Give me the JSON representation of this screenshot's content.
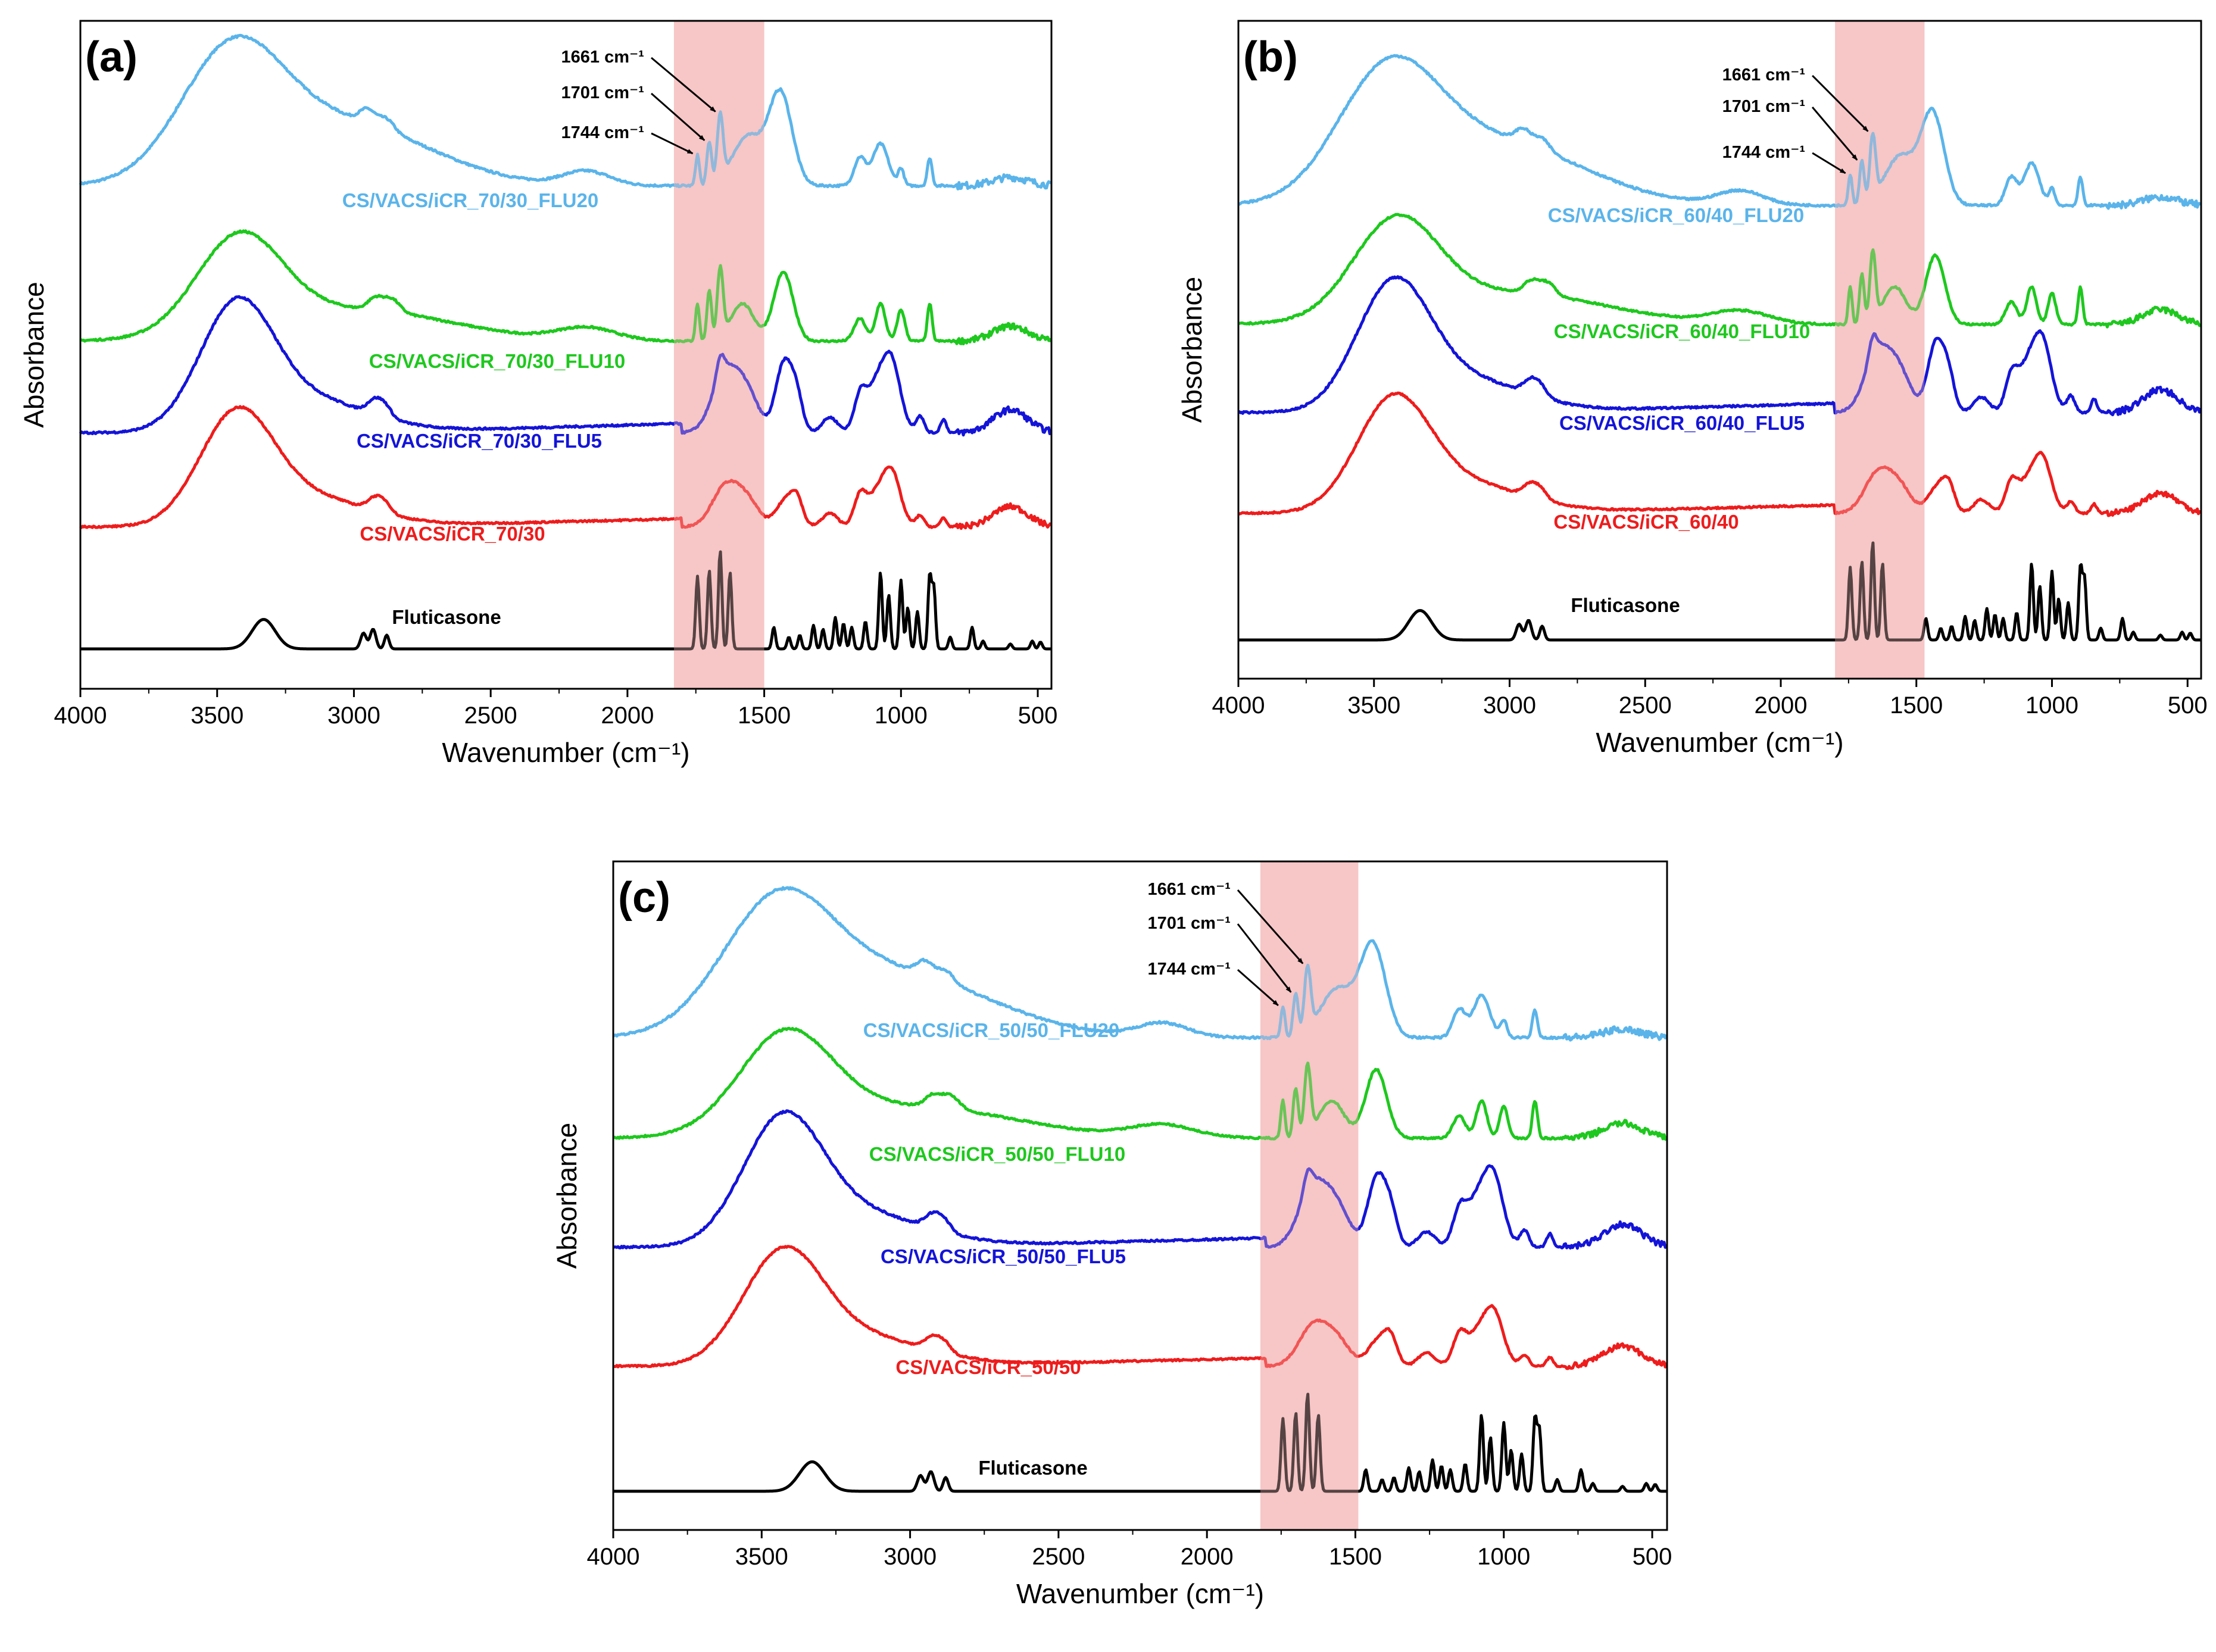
{
  "figure": {
    "xlabel": "Wavenumber (cm⁻¹)",
    "ylabel": "Absorbance",
    "colors": {
      "light_blue": "#5ab4ea",
      "green": "#1ec81e",
      "blue": "#1414d8",
      "red": "#ee1c1c",
      "black": "#000000",
      "highlight": "#f7c1c1"
    }
  },
  "chart_data": [
    {
      "panel_label": "(a)",
      "type": "line",
      "xlabel": "Wavenumber (cm⁻¹)",
      "ylabel": "Absorbance",
      "xlim": [
        4000,
        450
      ],
      "xticks": [
        4000,
        3500,
        3000,
        2500,
        2000,
        1500,
        1000,
        500
      ],
      "highlight_region": [
        1830,
        1500
      ],
      "annotations": [
        {
          "text": "1661 cm⁻¹",
          "x": 1661
        },
        {
          "text": "1701 cm⁻¹",
          "x": 1701
        },
        {
          "text": "1744 cm⁻¹",
          "x": 1744
        }
      ],
      "series": [
        {
          "name": "CS/VACS/iCR_70/30_FLU20",
          "color": "light_blue",
          "offset": 4
        },
        {
          "name": "CS/VACS/iCR_70/30_FLU10",
          "color": "green",
          "offset": 3
        },
        {
          "name": "CS/VACS/iCR_70/30_FLU5",
          "color": "blue",
          "offset": 2
        },
        {
          "name": "CS/VACS/iCR_70/30",
          "color": "red",
          "offset": 1
        },
        {
          "name": "Fluticasone",
          "color": "black",
          "offset": 0
        }
      ]
    },
    {
      "panel_label": "(b)",
      "type": "line",
      "xlabel": "Wavenumber (cm⁻¹)",
      "ylabel": "Absorbance",
      "xlim": [
        4000,
        450
      ],
      "xticks": [
        4000,
        3500,
        3000,
        2500,
        2000,
        1500,
        1000,
        500
      ],
      "highlight_region": [
        1800,
        1470
      ],
      "annotations": [
        {
          "text": "1661 cm⁻¹",
          "x": 1661
        },
        {
          "text": "1701 cm⁻¹",
          "x": 1701
        },
        {
          "text": "1744 cm⁻¹",
          "x": 1744
        }
      ],
      "series": [
        {
          "name": "CS/VACS/iCR_60/40_FLU20",
          "color": "light_blue",
          "offset": 4
        },
        {
          "name": "CS/VACS/iCR_60/40_FLU10",
          "color": "green",
          "offset": 3
        },
        {
          "name": "CS/VACS/iCR_60/40_FLU5",
          "color": "blue",
          "offset": 2
        },
        {
          "name": "CS/VACS/iCR_60/40",
          "color": "red",
          "offset": 1
        },
        {
          "name": "Fluticasone",
          "color": "black",
          "offset": 0
        }
      ]
    },
    {
      "panel_label": "(c)",
      "type": "line",
      "xlabel": "Wavenumber (cm⁻¹)",
      "ylabel": "Absorbance",
      "xlim": [
        4000,
        450
      ],
      "xticks": [
        4000,
        3500,
        3000,
        2500,
        2000,
        1500,
        1000,
        500
      ],
      "highlight_region": [
        1820,
        1490
      ],
      "annotations": [
        {
          "text": "1661 cm⁻¹",
          "x": 1661
        },
        {
          "text": "1701 cm⁻¹",
          "x": 1701
        },
        {
          "text": "1744 cm⁻¹",
          "x": 1744
        }
      ],
      "series": [
        {
          "name": "CS/VACS/iCR_50/50_FLU20",
          "color": "light_blue",
          "offset": 4
        },
        {
          "name": "CS/VACS/iCR_50/50_FLU10",
          "color": "green",
          "offset": 3
        },
        {
          "name": "CS/VACS/iCR_50/50_FLU5",
          "color": "blue",
          "offset": 2
        },
        {
          "name": "CS/VACS/iCR_50/50",
          "color": "red",
          "offset": 1
        },
        {
          "name": "Fluticasone",
          "color": "black",
          "offset": 0
        }
      ]
    }
  ]
}
